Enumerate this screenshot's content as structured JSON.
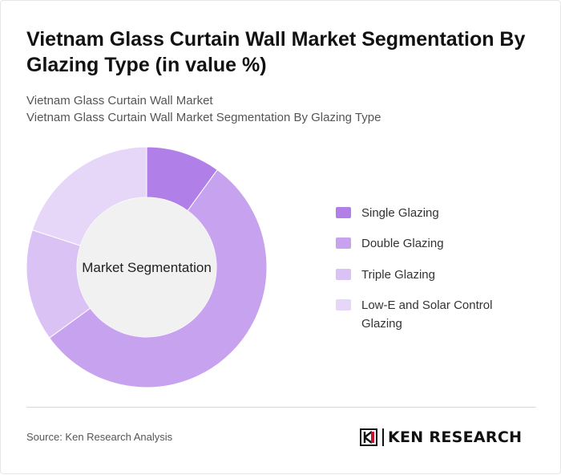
{
  "title": "Vietnam Glass Curtain Wall Market Segmentation By Glazing Type (in value %)",
  "subtitle_line1": "Vietnam Glass Curtain Wall Market",
  "subtitle_line2": "Vietnam Glass Curtain Wall Market Segmentation By Glazing Type",
  "source": "Source: Ken Research Analysis",
  "logo_text": "KEN RESEARCH",
  "chart_data": {
    "type": "pie",
    "donut": true,
    "center_label": "Market Segmentation",
    "categories": [
      "Single Glazing",
      "Double Glazing",
      "Triple Glazing",
      "Low-E and Solar Control Glazing"
    ],
    "values": [
      10,
      55,
      15,
      20
    ],
    "colors": [
      "#b07fe8",
      "#c7a3ef",
      "#dac2f4",
      "#e6d7f8"
    ],
    "legend_position": "right"
  }
}
